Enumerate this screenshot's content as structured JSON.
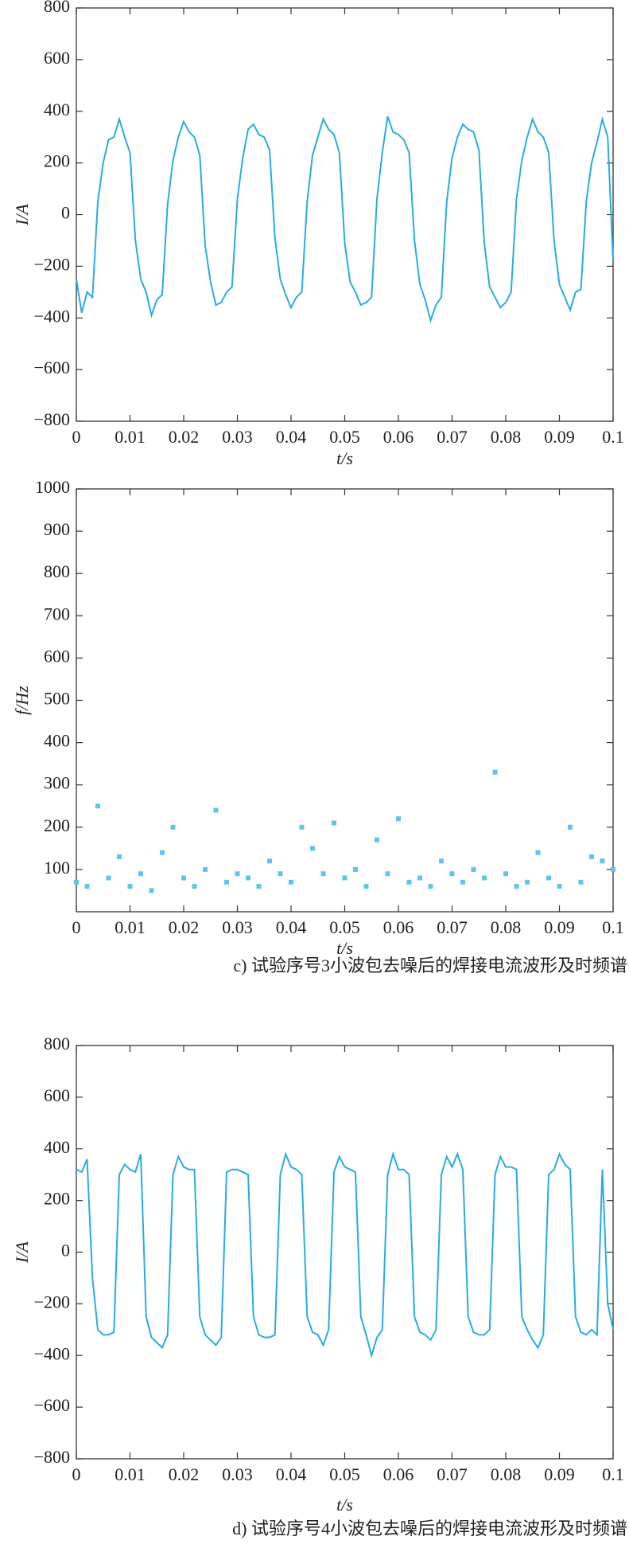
{
  "chart_data": [
    {
      "type": "line",
      "color": "#29abe2",
      "xlabel": "t/s",
      "ylabel": "I/A",
      "x": [
        0,
        0.001,
        0.002,
        0.003,
        0.004,
        0.005,
        0.006,
        0.007,
        0.008,
        0.009,
        0.01,
        0.011,
        0.012,
        0.013,
        0.014,
        0.015,
        0.016,
        0.017,
        0.018,
        0.019,
        0.02,
        0.021,
        0.022,
        0.023,
        0.024,
        0.025,
        0.026,
        0.027,
        0.028,
        0.029,
        0.03,
        0.031,
        0.032,
        0.033,
        0.034,
        0.035,
        0.036,
        0.037,
        0.038,
        0.039,
        0.04,
        0.041,
        0.042,
        0.043,
        0.044,
        0.045,
        0.046,
        0.047,
        0.048,
        0.049,
        0.05,
        0.051,
        0.052,
        0.053,
        0.054,
        0.055,
        0.056,
        0.057,
        0.058,
        0.059,
        0.06,
        0.061,
        0.062,
        0.063,
        0.064,
        0.065,
        0.066,
        0.067,
        0.068,
        0.069,
        0.07,
        0.071,
        0.072,
        0.073,
        0.074,
        0.075,
        0.076,
        0.077,
        0.078,
        0.079,
        0.08,
        0.081,
        0.082,
        0.083,
        0.084,
        0.085,
        0.086,
        0.087,
        0.088,
        0.089,
        0.09,
        0.091,
        0.092,
        0.093,
        0.094,
        0.095,
        0.096,
        0.097,
        0.098,
        0.099,
        0.1
      ],
      "values": [
        -250,
        -380,
        -300,
        -320,
        50,
        200,
        290,
        300,
        370,
        300,
        240,
        -100,
        -250,
        -300,
        -390,
        -330,
        -310,
        40,
        210,
        300,
        360,
        320,
        300,
        230,
        -120,
        -260,
        -350,
        -340,
        -300,
        -280,
        60,
        220,
        330,
        350,
        310,
        300,
        250,
        -90,
        -250,
        -310,
        -360,
        -320,
        -300,
        50,
        230,
        300,
        370,
        330,
        310,
        240,
        -110,
        -260,
        -300,
        -350,
        -340,
        -320,
        60,
        240,
        380,
        320,
        310,
        290,
        240,
        -100,
        -270,
        -330,
        -410,
        -350,
        -320,
        50,
        220,
        300,
        350,
        330,
        320,
        250,
        -110,
        -280,
        -320,
        -360,
        -340,
        -300,
        60,
        210,
        300,
        370,
        320,
        300,
        240,
        -100,
        -270,
        -320,
        -370,
        -300,
        -290,
        50,
        200,
        280,
        370,
        300,
        -180
      ],
      "xlim": [
        0,
        0.1
      ],
      "xticks": [
        0,
        0.01,
        0.02,
        0.03,
        0.04,
        0.05,
        0.06,
        0.07,
        0.08,
        0.09,
        0.1
      ],
      "ylim": [
        -800,
        800
      ],
      "yticks": [
        {
          "value": -800,
          "label": "−800"
        },
        {
          "value": -600,
          "label": "−600"
        },
        {
          "value": -400,
          "label": "−400"
        },
        {
          "value": -200,
          "label": "−200"
        },
        0,
        200,
        400,
        600,
        800
      ]
    },
    {
      "type": "scatter",
      "color": "#5fc3ea",
      "xlabel": "t/s",
      "ylabel": "f/Hz",
      "x": [
        0,
        0.002,
        0.004,
        0.006,
        0.008,
        0.01,
        0.012,
        0.014,
        0.016,
        0.018,
        0.02,
        0.022,
        0.024,
        0.026,
        0.028,
        0.03,
        0.032,
        0.034,
        0.036,
        0.038,
        0.04,
        0.042,
        0.044,
        0.046,
        0.048,
        0.05,
        0.052,
        0.054,
        0.056,
        0.058,
        0.06,
        0.062,
        0.064,
        0.066,
        0.068,
        0.07,
        0.072,
        0.074,
        0.076,
        0.078,
        0.08,
        0.082,
        0.084,
        0.086,
        0.088,
        0.09,
        0.092,
        0.094,
        0.096,
        0.098,
        0.1
      ],
      "values": [
        70,
        60,
        250,
        80,
        130,
        60,
        90,
        50,
        140,
        200,
        80,
        60,
        100,
        240,
        70,
        90,
        80,
        60,
        120,
        90,
        70,
        200,
        150,
        90,
        210,
        80,
        100,
        60,
        170,
        90,
        220,
        70,
        80,
        60,
        120,
        90,
        70,
        100,
        80,
        330,
        90,
        60,
        70,
        140,
        80,
        60,
        200,
        70,
        130,
        120,
        100
      ],
      "xlim": [
        0,
        0.1
      ],
      "xticks": [
        0,
        0.01,
        0.02,
        0.03,
        0.04,
        0.05,
        0.06,
        0.07,
        0.08,
        0.09,
        0.1
      ],
      "ylim": [
        0,
        1000
      ],
      "yticks": [
        100,
        200,
        300,
        400,
        500,
        600,
        700,
        800,
        900,
        1000
      ],
      "caption": "c) 试验序号3小波包去噪后的焊接电流波形及时频谱"
    },
    {
      "type": "line",
      "color": "#29abe2",
      "xlabel": "t/s",
      "ylabel": "I/A",
      "x": [
        0,
        0.001,
        0.002,
        0.003,
        0.004,
        0.005,
        0.006,
        0.007,
        0.008,
        0.009,
        0.01,
        0.011,
        0.012,
        0.013,
        0.014,
        0.015,
        0.016,
        0.017,
        0.018,
        0.019,
        0.02,
        0.021,
        0.022,
        0.023,
        0.024,
        0.025,
        0.026,
        0.027,
        0.028,
        0.029,
        0.03,
        0.031,
        0.032,
        0.033,
        0.034,
        0.035,
        0.036,
        0.037,
        0.038,
        0.039,
        0.04,
        0.041,
        0.042,
        0.043,
        0.044,
        0.045,
        0.046,
        0.047,
        0.048,
        0.049,
        0.05,
        0.051,
        0.052,
        0.053,
        0.054,
        0.055,
        0.056,
        0.057,
        0.058,
        0.059,
        0.06,
        0.061,
        0.062,
        0.063,
        0.064,
        0.065,
        0.066,
        0.067,
        0.068,
        0.069,
        0.07,
        0.071,
        0.072,
        0.073,
        0.074,
        0.075,
        0.076,
        0.077,
        0.078,
        0.079,
        0.08,
        0.081,
        0.082,
        0.083,
        0.084,
        0.085,
        0.086,
        0.087,
        0.088,
        0.089,
        0.09,
        0.091,
        0.092,
        0.093,
        0.094,
        0.095,
        0.096,
        0.097,
        0.098,
        0.099,
        0.1
      ],
      "values": [
        320,
        310,
        360,
        -100,
        -300,
        -320,
        -320,
        -310,
        300,
        340,
        320,
        310,
        380,
        -250,
        -330,
        -350,
        -370,
        -320,
        300,
        370,
        330,
        320,
        320,
        -250,
        -320,
        -340,
        -360,
        -330,
        310,
        320,
        320,
        310,
        300,
        -250,
        -320,
        -330,
        -330,
        -320,
        300,
        380,
        330,
        320,
        300,
        -250,
        -310,
        -320,
        -360,
        -300,
        310,
        370,
        330,
        320,
        310,
        -250,
        -320,
        -400,
        -330,
        -300,
        300,
        380,
        320,
        320,
        300,
        -250,
        -310,
        -320,
        -340,
        -300,
        300,
        370,
        330,
        380,
        320,
        -250,
        -310,
        -320,
        -320,
        -300,
        300,
        370,
        330,
        330,
        320,
        -250,
        -300,
        -340,
        -370,
        -320,
        300,
        320,
        380,
        340,
        320,
        -250,
        -310,
        -320,
        -300,
        -320,
        320,
        -200,
        -300
      ],
      "xlim": [
        0,
        0.1
      ],
      "xticks": [
        0,
        0.01,
        0.02,
        0.03,
        0.04,
        0.05,
        0.06,
        0.07,
        0.08,
        0.09,
        0.1
      ],
      "ylim": [
        -800,
        800
      ],
      "yticks": [
        {
          "value": -800,
          "label": "−800"
        },
        {
          "value": -600,
          "label": "−600"
        },
        {
          "value": -400,
          "label": "−400"
        },
        {
          "value": -200,
          "label": "−200"
        },
        0,
        200,
        400,
        600,
        800
      ],
      "caption": "d) 试验序号4小波包去噪后的焊接电流波形及时频谱"
    }
  ]
}
